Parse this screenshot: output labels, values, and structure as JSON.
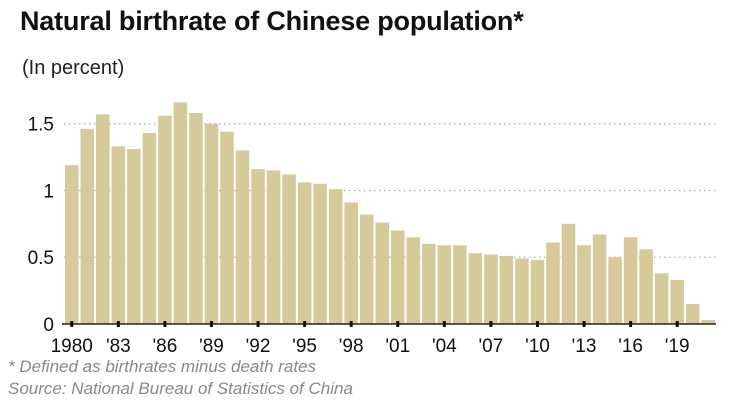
{
  "chart_data": {
    "type": "bar",
    "title": "Natural birthrate of Chinese population*",
    "subtitle": "(In percent)",
    "xlabel": "",
    "ylabel": "",
    "ylim": [
      0,
      1.7
    ],
    "yticks": [
      0,
      0.5,
      1,
      1.5
    ],
    "ytick_labels": [
      "0",
      "0.5",
      "1",
      "1.5"
    ],
    "xtick_labels": [
      "1980",
      "'83",
      "'86",
      "'89",
      "'92",
      "'95",
      "'98",
      "'01",
      "'04",
      "'07",
      "'10",
      "'13",
      "'16",
      "'19"
    ],
    "categories": [
      "1980",
      "1981",
      "1982",
      "1983",
      "1984",
      "1985",
      "1986",
      "1987",
      "1988",
      "1989",
      "1990",
      "1991",
      "1992",
      "1993",
      "1994",
      "1995",
      "1996",
      "1997",
      "1998",
      "1999",
      "2000",
      "2001",
      "2002",
      "2003",
      "2004",
      "2005",
      "2006",
      "2007",
      "2008",
      "2009",
      "2010",
      "2011",
      "2012",
      "2013",
      "2014",
      "2015",
      "2016",
      "2017",
      "2018",
      "2019",
      "2020",
      "2021"
    ],
    "values": [
      1.19,
      1.46,
      1.57,
      1.33,
      1.31,
      1.43,
      1.56,
      1.66,
      1.58,
      1.5,
      1.44,
      1.3,
      1.16,
      1.15,
      1.12,
      1.06,
      1.05,
      1.01,
      0.91,
      0.82,
      0.76,
      0.7,
      0.65,
      0.6,
      0.59,
      0.59,
      0.53,
      0.52,
      0.51,
      0.49,
      0.48,
      0.61,
      0.75,
      0.59,
      0.67,
      0.5,
      0.65,
      0.56,
      0.38,
      0.33,
      0.15,
      0.03
    ],
    "bar_color": "#d6c99a",
    "grid_color": "#b0b0b0",
    "note": "* Defined as birthrates minus death rates",
    "source": "Source: National Bureau of Statistics of China"
  }
}
